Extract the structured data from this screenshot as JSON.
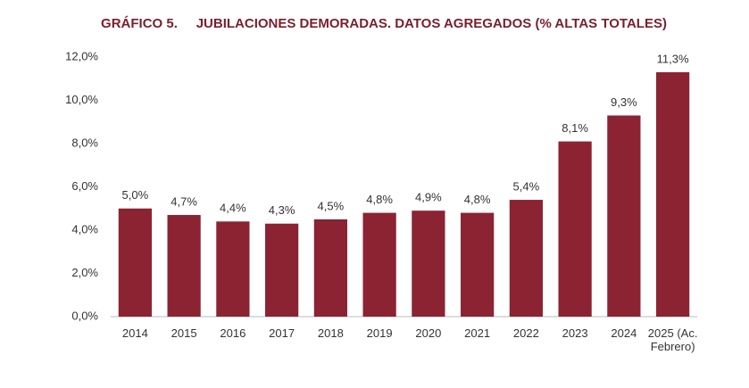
{
  "chart_data": {
    "type": "bar",
    "title": "GRÁFICO 5.     JUBILACIONES DEMORADAS. DATOS AGREGADOS (% ALTAS TOTALES)",
    "categories": [
      "2014",
      "2015",
      "2016",
      "2017",
      "2018",
      "2019",
      "2020",
      "2021",
      "2022",
      "2023",
      "2024",
      "2025 (Ac. Febrero)"
    ],
    "values": [
      5.0,
      4.7,
      4.4,
      4.3,
      4.5,
      4.8,
      4.9,
      4.8,
      5.4,
      8.1,
      9.3,
      11.3
    ],
    "value_labels": [
      "5,0%",
      "4,7%",
      "4,4%",
      "4,3%",
      "4,5%",
      "4,8%",
      "4,9%",
      "4,8%",
      "5,4%",
      "8,1%",
      "9,3%",
      "11,3%"
    ],
    "color": "#8b2332",
    "ylim": [
      0,
      12
    ],
    "yticks": [
      {
        "value": 0,
        "label": "0,0%"
      },
      {
        "value": 2,
        "label": "2,0%"
      },
      {
        "value": 4,
        "label": "4,0%"
      },
      {
        "value": 6,
        "label": "6,0%"
      },
      {
        "value": 8,
        "label": "8,0%"
      },
      {
        "value": 10,
        "label": "10,0%"
      },
      {
        "value": 12,
        "label": "12,0%"
      }
    ],
    "grid": false
  }
}
